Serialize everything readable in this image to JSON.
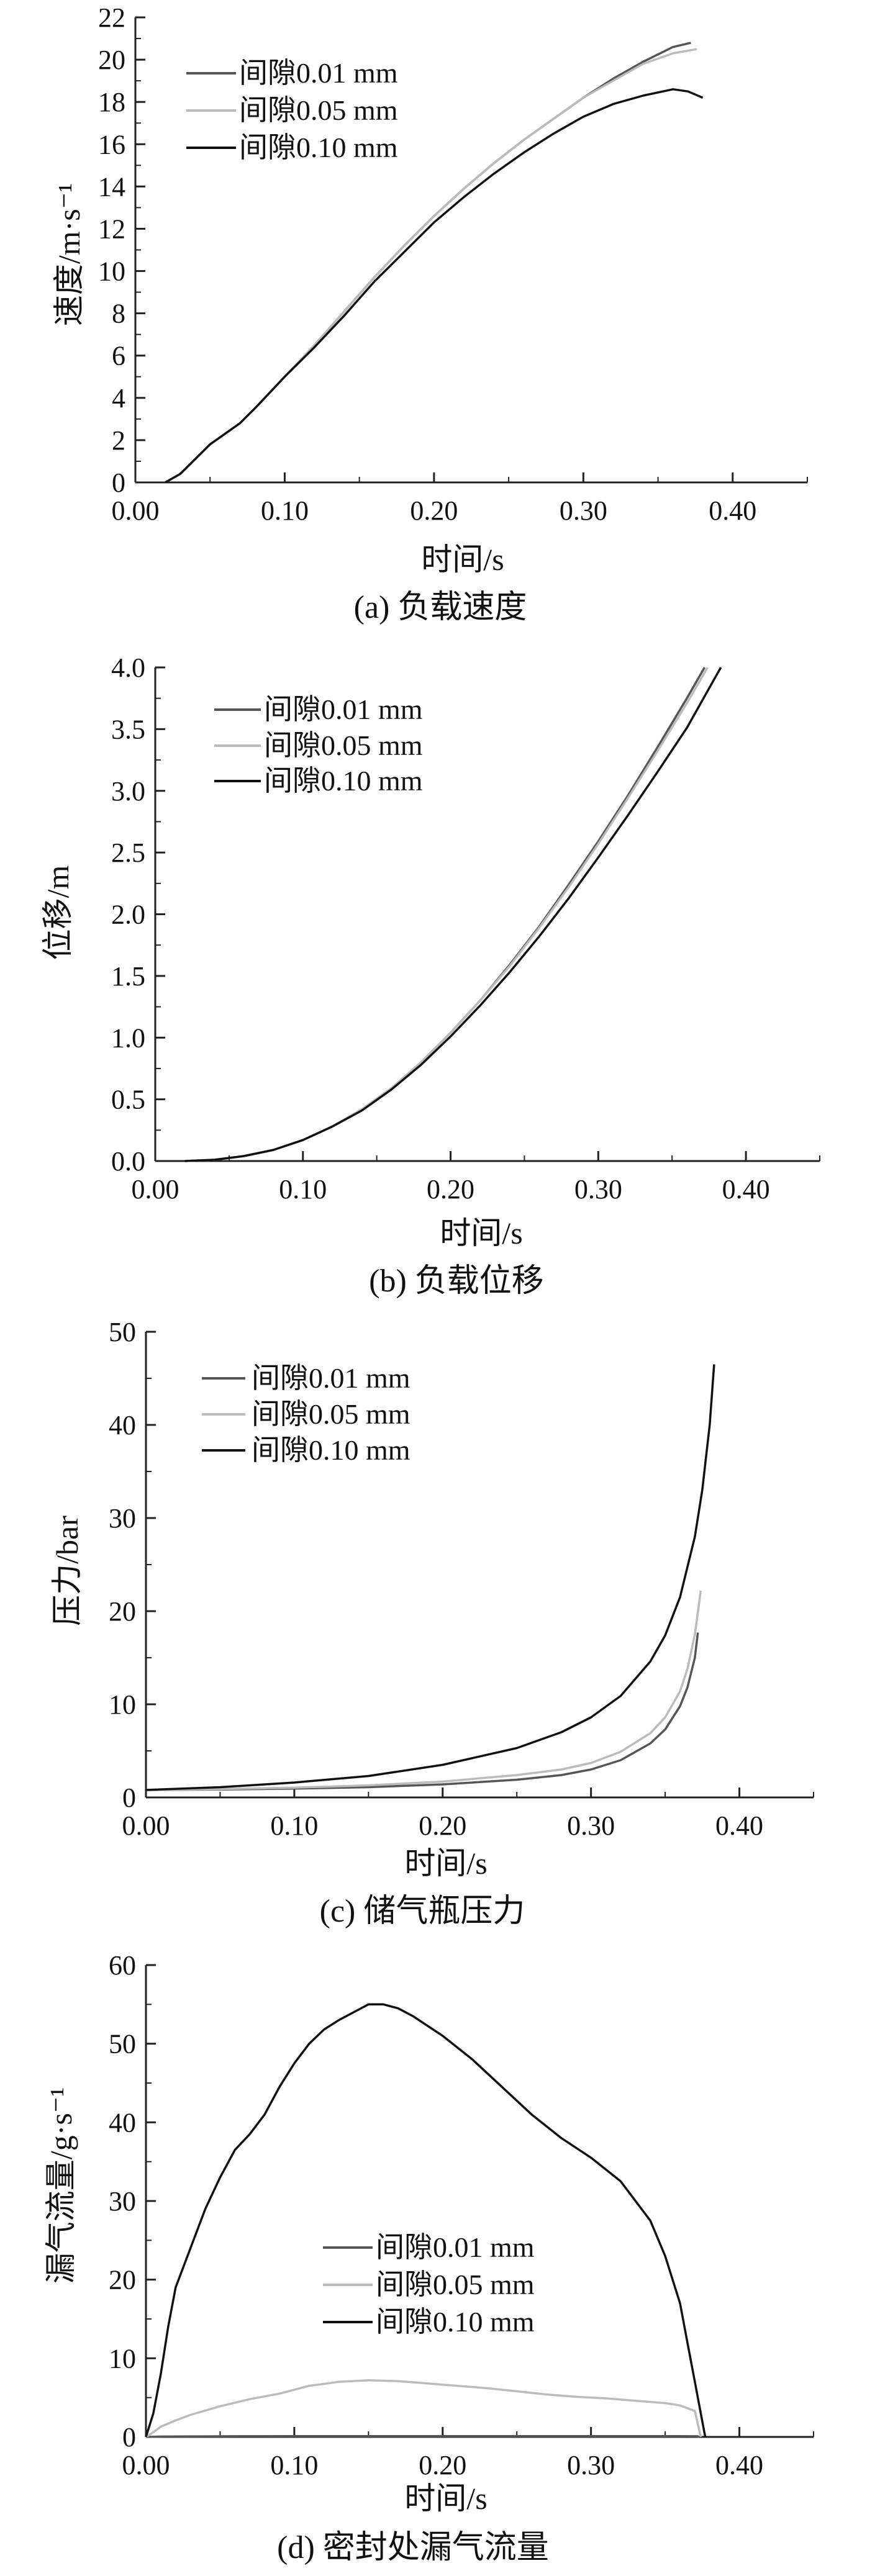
{
  "colors": {
    "gap_001": "#555555",
    "gap_005": "#bbbbbb",
    "gap_010": "#111111"
  },
  "chart_data": [
    {
      "type": "line",
      "caption": "(a) 负载速度",
      "xlabel": "时间/s",
      "ylabel": "速度/m·s⁻¹",
      "xlim": [
        0,
        0.45
      ],
      "ylim": [
        0,
        22
      ],
      "xticks": [
        "0.00",
        "0.10",
        "0.20",
        "0.30",
        "0.40"
      ],
      "yticks": [
        "0",
        "2",
        "4",
        "6",
        "8",
        "10",
        "12",
        "14",
        "16",
        "18",
        "20",
        "22"
      ],
      "legend": "top-left",
      "grid": false,
      "series": [
        {
          "name": "间隙0.01 mm",
          "color_key": "gap_001",
          "x": [
            0.02,
            0.03,
            0.04,
            0.05,
            0.06,
            0.07,
            0.08,
            0.1,
            0.12,
            0.14,
            0.16,
            0.18,
            0.2,
            0.22,
            0.24,
            0.26,
            0.28,
            0.3,
            0.32,
            0.34,
            0.36,
            0.372
          ],
          "y": [
            0.0,
            0.4,
            1.1,
            1.8,
            2.3,
            2.8,
            3.5,
            5.0,
            6.5,
            8.1,
            9.7,
            11.2,
            12.6,
            13.9,
            15.1,
            16.2,
            17.2,
            18.2,
            19.1,
            19.9,
            20.6,
            20.8
          ]
        },
        {
          "name": "间隙0.05 mm",
          "color_key": "gap_005",
          "x": [
            0.02,
            0.03,
            0.04,
            0.05,
            0.06,
            0.07,
            0.08,
            0.1,
            0.12,
            0.14,
            0.16,
            0.18,
            0.2,
            0.22,
            0.24,
            0.26,
            0.28,
            0.3,
            0.32,
            0.34,
            0.36,
            0.376
          ],
          "y": [
            0.0,
            0.4,
            1.1,
            1.8,
            2.3,
            2.8,
            3.5,
            5.0,
            6.5,
            8.1,
            9.7,
            11.2,
            12.6,
            13.9,
            15.1,
            16.2,
            17.2,
            18.2,
            19.0,
            19.8,
            20.3,
            20.5
          ]
        },
        {
          "name": "间隙0.10 mm",
          "color_key": "gap_010",
          "x": [
            0.02,
            0.03,
            0.04,
            0.05,
            0.06,
            0.07,
            0.08,
            0.1,
            0.12,
            0.14,
            0.16,
            0.18,
            0.2,
            0.22,
            0.24,
            0.26,
            0.28,
            0.3,
            0.32,
            0.34,
            0.36,
            0.37,
            0.38
          ],
          "y": [
            0.0,
            0.4,
            1.1,
            1.8,
            2.3,
            2.8,
            3.5,
            5.0,
            6.4,
            7.9,
            9.5,
            10.9,
            12.3,
            13.5,
            14.6,
            15.6,
            16.5,
            17.3,
            17.9,
            18.3,
            18.6,
            18.5,
            18.2
          ]
        }
      ]
    },
    {
      "type": "line",
      "caption": "(b) 负载位移",
      "xlabel": "时间/s",
      "ylabel": "位移/m",
      "xlim": [
        0,
        0.45
      ],
      "ylim": [
        0,
        4
      ],
      "xticks": [
        "0.00",
        "0.10",
        "0.20",
        "0.30",
        "0.40"
      ],
      "yticks": [
        "0.0",
        "0.5",
        "1.0",
        "1.5",
        "2.0",
        "2.5",
        "3.0",
        "3.5",
        "4.0"
      ],
      "legend": "top-left",
      "grid": false,
      "series": [
        {
          "name": "间隙0.01 mm",
          "color_key": "gap_001",
          "x": [
            0.02,
            0.04,
            0.06,
            0.08,
            0.1,
            0.12,
            0.14,
            0.16,
            0.18,
            0.2,
            0.22,
            0.24,
            0.26,
            0.28,
            0.3,
            0.32,
            0.34,
            0.36,
            0.372
          ],
          "y": [
            0.0,
            0.01,
            0.04,
            0.09,
            0.17,
            0.28,
            0.42,
            0.59,
            0.8,
            1.04,
            1.3,
            1.59,
            1.9,
            2.24,
            2.59,
            2.96,
            3.35,
            3.75,
            4.0
          ]
        },
        {
          "name": "间隙0.05 mm",
          "color_key": "gap_005",
          "x": [
            0.02,
            0.04,
            0.06,
            0.08,
            0.1,
            0.12,
            0.14,
            0.16,
            0.18,
            0.2,
            0.22,
            0.24,
            0.26,
            0.28,
            0.3,
            0.32,
            0.34,
            0.36,
            0.374
          ],
          "y": [
            0.0,
            0.01,
            0.04,
            0.09,
            0.17,
            0.28,
            0.42,
            0.59,
            0.8,
            1.04,
            1.3,
            1.58,
            1.89,
            2.22,
            2.57,
            2.94,
            3.32,
            3.71,
            4.0
          ]
        },
        {
          "name": "间隙0.10 mm",
          "color_key": "gap_010",
          "x": [
            0.02,
            0.04,
            0.06,
            0.08,
            0.1,
            0.12,
            0.14,
            0.16,
            0.18,
            0.2,
            0.22,
            0.24,
            0.26,
            0.28,
            0.3,
            0.32,
            0.34,
            0.36,
            0.383
          ],
          "y": [
            0.0,
            0.01,
            0.04,
            0.09,
            0.17,
            0.28,
            0.41,
            0.58,
            0.78,
            1.01,
            1.26,
            1.53,
            1.82,
            2.13,
            2.46,
            2.8,
            3.15,
            3.51,
            4.0
          ]
        }
      ]
    },
    {
      "type": "line",
      "caption": "(c) 储气瓶压力",
      "xlabel": "时间/s",
      "ylabel": "压力/bar",
      "xlim": [
        0,
        0.45
      ],
      "ylim": [
        0,
        50
      ],
      "xticks": [
        "0.00",
        "0.10",
        "0.20",
        "0.30",
        "0.40"
      ],
      "yticks": [
        "0",
        "10",
        "20",
        "30",
        "40",
        "50"
      ],
      "legend": "top-left",
      "grid": false,
      "series": [
        {
          "name": "间隙0.01 mm",
          "color_key": "gap_001",
          "x": [
            0.0,
            0.05,
            0.1,
            0.15,
            0.2,
            0.25,
            0.28,
            0.3,
            0.32,
            0.34,
            0.35,
            0.36,
            0.365,
            0.37,
            0.372
          ],
          "y": [
            0.8,
            0.85,
            0.95,
            1.1,
            1.4,
            1.9,
            2.4,
            3.0,
            4.0,
            5.8,
            7.3,
            9.8,
            11.8,
            15.0,
            17.7
          ]
        },
        {
          "name": "间隙0.05 mm",
          "color_key": "gap_005",
          "x": [
            0.0,
            0.05,
            0.1,
            0.15,
            0.2,
            0.25,
            0.28,
            0.3,
            0.32,
            0.34,
            0.35,
            0.36,
            0.365,
            0.37,
            0.374
          ],
          "y": [
            0.8,
            0.9,
            1.05,
            1.3,
            1.7,
            2.4,
            3.0,
            3.7,
            4.9,
            6.9,
            8.6,
            11.4,
            13.8,
            17.5,
            22.2
          ]
        },
        {
          "name": "间隙0.10 mm",
          "color_key": "gap_010",
          "x": [
            0.0,
            0.05,
            0.1,
            0.15,
            0.2,
            0.25,
            0.28,
            0.3,
            0.32,
            0.34,
            0.35,
            0.36,
            0.37,
            0.375,
            0.38,
            0.383
          ],
          "y": [
            0.8,
            1.1,
            1.6,
            2.3,
            3.5,
            5.3,
            7.0,
            8.6,
            10.9,
            14.6,
            17.4,
            21.5,
            28.0,
            33.0,
            40.0,
            46.5
          ]
        }
      ]
    },
    {
      "type": "line",
      "caption": "(d) 密封处漏气流量",
      "xlabel": "时间/s",
      "ylabel": "漏气流量/g·s⁻¹",
      "xlim": [
        0,
        0.45
      ],
      "ylim": [
        0,
        60
      ],
      "xticks": [
        "0.00",
        "0.10",
        "0.20",
        "0.30",
        "0.40"
      ],
      "yticks": [
        "0",
        "10",
        "20",
        "30",
        "40",
        "50",
        "60"
      ],
      "legend": "center",
      "grid": false,
      "series": [
        {
          "name": "间隙0.01 mm",
          "color_key": "gap_001",
          "x": [
            0.0,
            0.01,
            0.05,
            0.1,
            0.15,
            0.2,
            0.25,
            0.3,
            0.35,
            0.36,
            0.372,
            0.373
          ],
          "y": [
            0.0,
            0.05,
            0.08,
            0.1,
            0.1,
            0.1,
            0.1,
            0.1,
            0.1,
            0.1,
            0.08,
            0.0
          ]
        },
        {
          "name": "间隙0.05 mm",
          "color_key": "gap_005",
          "x": [
            0.0,
            0.005,
            0.01,
            0.02,
            0.03,
            0.05,
            0.07,
            0.09,
            0.11,
            0.13,
            0.15,
            0.17,
            0.19,
            0.21,
            0.23,
            0.25,
            0.27,
            0.29,
            0.31,
            0.33,
            0.35,
            0.36,
            0.37,
            0.374
          ],
          "y": [
            0.0,
            0.6,
            1.3,
            2.1,
            2.8,
            3.9,
            4.8,
            5.5,
            6.5,
            7.0,
            7.2,
            7.1,
            6.8,
            6.5,
            6.2,
            5.8,
            5.4,
            5.1,
            4.9,
            4.6,
            4.3,
            4.0,
            3.3,
            0.0
          ]
        },
        {
          "name": "间隙0.10 mm",
          "color_key": "gap_010",
          "x": [
            0.0,
            0.005,
            0.01,
            0.015,
            0.02,
            0.03,
            0.04,
            0.05,
            0.06,
            0.07,
            0.08,
            0.09,
            0.1,
            0.11,
            0.12,
            0.13,
            0.14,
            0.15,
            0.16,
            0.17,
            0.18,
            0.2,
            0.22,
            0.24,
            0.26,
            0.28,
            0.3,
            0.32,
            0.34,
            0.35,
            0.36,
            0.365,
            0.37,
            0.375,
            0.377
          ],
          "y": [
            0.0,
            3.0,
            8.0,
            14.0,
            19.0,
            24.0,
            29.0,
            33.0,
            36.5,
            38.5,
            41.0,
            44.5,
            47.5,
            50.0,
            51.8,
            53.0,
            54.0,
            55.0,
            55.0,
            54.5,
            53.5,
            51.0,
            48.0,
            44.5,
            41.0,
            38.0,
            35.5,
            32.5,
            27.5,
            23.0,
            17.0,
            12.0,
            7.0,
            2.0,
            0.0
          ]
        }
      ]
    }
  ]
}
